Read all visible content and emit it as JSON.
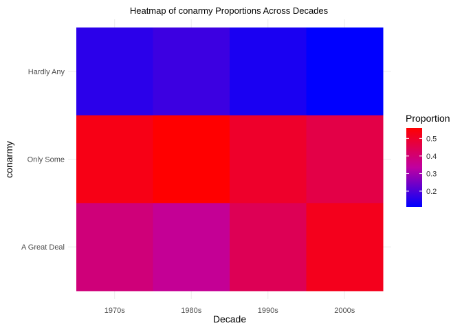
{
  "chart_data": {
    "type": "heatmap",
    "title": "Heatmap of conarmy Proportions Across Decades",
    "xlabel": "Decade",
    "ylabel": "conarmy",
    "x_categories": [
      "1970s",
      "1980s",
      "1990s",
      "2000s"
    ],
    "y_categories": [
      "Hardly Any",
      "Only Some",
      "A Great Deal"
    ],
    "values": [
      [
        0.16,
        0.18,
        0.14,
        0.11
      ],
      [
        0.53,
        0.56,
        0.5,
        0.46
      ],
      [
        0.39,
        0.35,
        0.44,
        0.52
      ]
    ],
    "legend": {
      "title": "Proportion",
      "ticks": [
        0.2,
        0.3,
        0.4,
        0.5
      ],
      "tick_labels": [
        "0.2",
        "0.3",
        "0.4",
        "0.5"
      ],
      "range": [
        0.11,
        0.56
      ],
      "placement": "right"
    },
    "color_low": "#0000ff",
    "color_high": "#ff0000",
    "grid": true
  }
}
